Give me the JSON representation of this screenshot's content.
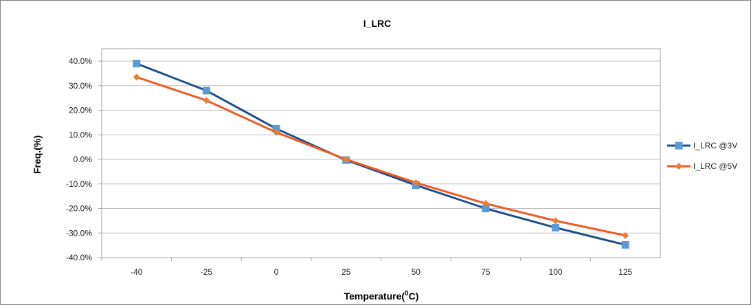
{
  "chart_data": {
    "type": "line",
    "title": "I_LRC",
    "xlabel": "Temperature(⁰C)",
    "xlabel_main": "Temperature(",
    "xlabel_sup": "0",
    "xlabel_tail": "C)",
    "ylabel": "Freq.(%)",
    "categories": [
      "-40",
      "-25",
      "0",
      "25",
      "50",
      "75",
      "100",
      "125"
    ],
    "ylim": [
      -40,
      40
    ],
    "yticks": [
      "40.0%",
      "30.0%",
      "20.0%",
      "10.0%",
      "0.0%",
      "-10.0%",
      "-20.0%",
      "-30.0%",
      "-40.0%"
    ],
    "grid": true,
    "legend_position": "right",
    "series": [
      {
        "name": "I_LRC @3V",
        "values": [
          39.0,
          28.0,
          12.5,
          -0.3,
          -10.5,
          -20.0,
          -27.8,
          -34.8
        ],
        "line_color": "#1f4e8c",
        "marker_color": "#5b9bd5",
        "marker": "square"
      },
      {
        "name": "I_LRC @5V",
        "values": [
          33.5,
          24.0,
          11.0,
          0.0,
          -9.5,
          -18.0,
          -25.0,
          -31.0
        ],
        "line_color": "#f05a22",
        "marker_color": "#ed7d31",
        "marker": "diamond"
      }
    ]
  }
}
